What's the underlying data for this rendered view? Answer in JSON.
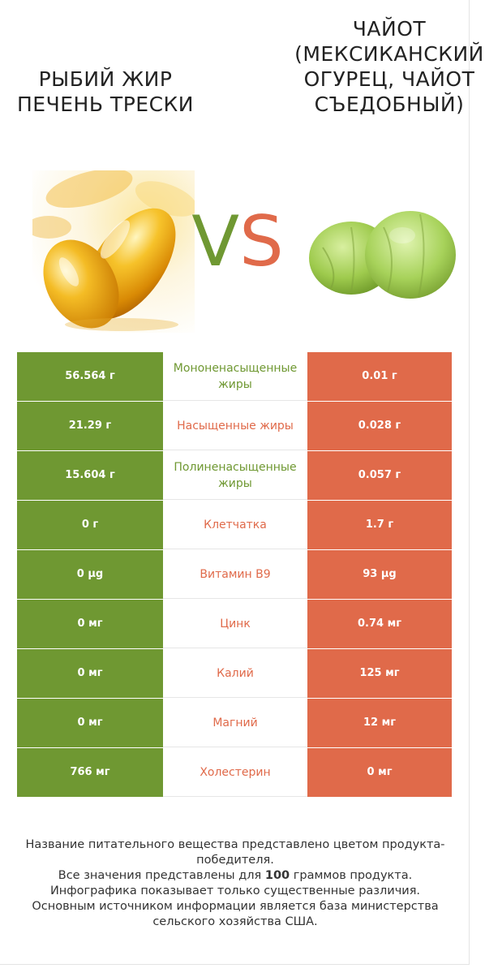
{
  "header": {
    "left_title": "РЫБИЙ ЖИР ПЕЧЕНЬ ТРЕСКИ",
    "right_title": "ЧАЙОТ (МЕКСИКАНСКИЙ ОГУРЕЦ, ЧАЙОТ СЪЕДОБНЫЙ)",
    "vs_v": "V",
    "vs_s": "S"
  },
  "colors": {
    "left": "#6f9832",
    "right": "#e06a4a"
  },
  "rows": [
    {
      "left": "56.564 г",
      "nutrient": "Мононенасыщенные жиры",
      "right": "0.01 г",
      "winner": "left"
    },
    {
      "left": "21.29 г",
      "nutrient": "Насыщенные жиры",
      "right": "0.028 г",
      "winner": "right"
    },
    {
      "left": "15.604 г",
      "nutrient": "Полиненасыщенные жиры",
      "right": "0.057 г",
      "winner": "left"
    },
    {
      "left": "0 г",
      "nutrient": "Клетчатка",
      "right": "1.7 г",
      "winner": "right"
    },
    {
      "left": "0 µg",
      "nutrient": "Витамин B9",
      "right": "93 µg",
      "winner": "right"
    },
    {
      "left": "0 мг",
      "nutrient": "Цинк",
      "right": "0.74 мг",
      "winner": "right"
    },
    {
      "left": "0 мг",
      "nutrient": "Калий",
      "right": "125 мг",
      "winner": "right"
    },
    {
      "left": "0 мг",
      "nutrient": "Магний",
      "right": "12 мг",
      "winner": "right"
    },
    {
      "left": "766 мг",
      "nutrient": "Холестерин",
      "right": "0 мг",
      "winner": "right"
    }
  ],
  "footer": {
    "line1": "Название питательного вещества представлено цветом продукта-победителя.",
    "line2_pre": "Все значения представлены для ",
    "line2_bold": "100",
    "line2_post": " граммов продукта.",
    "line3": "Инфографика показывает только существенные различия.",
    "line4": "Основным источником информации является база министерства сельского хозяйства США."
  }
}
